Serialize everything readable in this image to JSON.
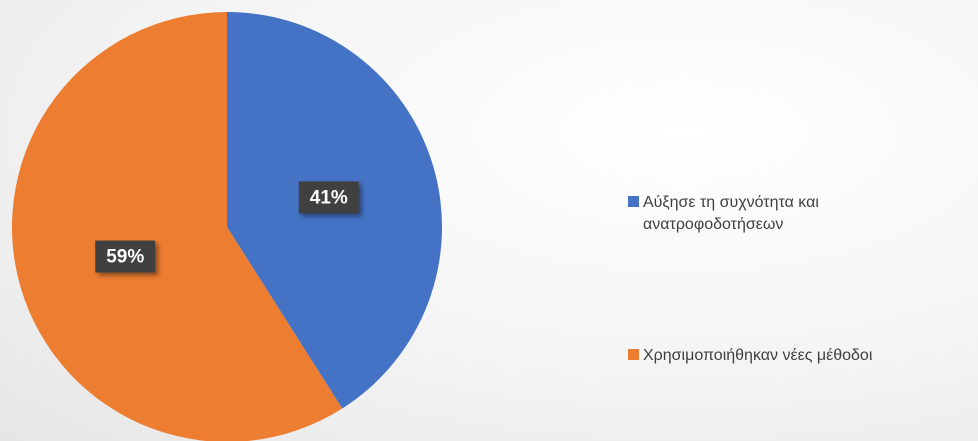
{
  "chart_data": {
    "type": "pie",
    "categories": [
      "Αύξησε τη συχνότητα και ανατροφοδοτήσεων",
      "Χρησιμοποιήθηκαν  νέες μέθοδοι"
    ],
    "values": [
      41,
      59
    ],
    "value_labels": [
      "41%",
      "59%"
    ],
    "colors": [
      "#4472c4",
      "#ed7d31"
    ],
    "legend": "right"
  }
}
